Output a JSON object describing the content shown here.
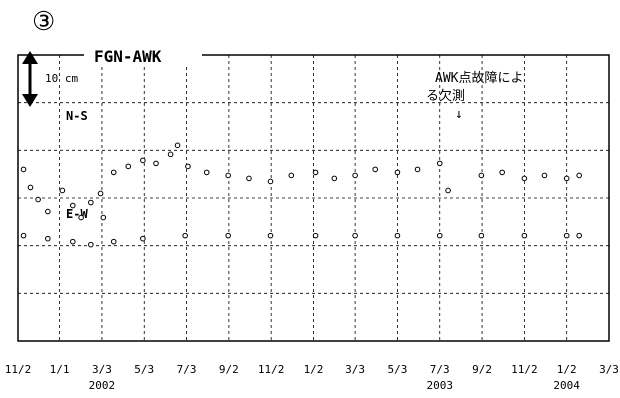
{
  "panel_marker": "③",
  "chart_data": {
    "type": "scatter",
    "title": "FGN-AWK",
    "scale_bar": {
      "label": "10 cm",
      "length_cm": 10
    },
    "grid": true,
    "grid_style": "dashed",
    "marker": "open-circle",
    "annotation": {
      "text_line1": "AWK点故障によ",
      "text_line2": "る欠測",
      "arrow": "↓",
      "at_x": "2003-07-25"
    },
    "x_ticks": [
      {
        "label": "11/2",
        "date": "2001-11-02"
      },
      {
        "label": "1/1",
        "date": "2002-01-01"
      },
      {
        "label": "3/3",
        "date": "2002-03-03"
      },
      {
        "label": "5/3",
        "date": "2002-05-03"
      },
      {
        "label": "7/3",
        "date": "2002-07-03"
      },
      {
        "label": "9/2",
        "date": "2002-09-02"
      },
      {
        "label": "11/2",
        "date": "2002-11-02"
      },
      {
        "label": "1/2",
        "date": "2003-01-02"
      },
      {
        "label": "3/3",
        "date": "2003-03-03"
      },
      {
        "label": "5/3",
        "date": "2003-05-03"
      },
      {
        "label": "7/3",
        "date": "2003-07-03"
      },
      {
        "label": "9/2",
        "date": "2003-09-02"
      },
      {
        "label": "11/2",
        "date": "2003-11-02"
      },
      {
        "label": "1/2",
        "date": "2004-01-02"
      },
      {
        "label": "3/3",
        "date": "2004-03-03"
      }
    ],
    "year_labels": [
      {
        "label": "2002",
        "date": "2002-03-03"
      },
      {
        "label": "2003",
        "date": "2003-07-03"
      },
      {
        "label": "2004",
        "date": "2004-01-02"
      }
    ],
    "xlim": [
      "2001-11-02",
      "2004-03-03"
    ],
    "ylim_cm": [
      -55,
      40
    ],
    "gap": [
      "2003-07-20",
      "2003-08-22"
    ],
    "series": [
      {
        "name": "N-S",
        "baseline_cm": 0,
        "values_cm": [
          {
            "x": "2001-11-10",
            "y": 2
          },
          {
            "x": "2001-11-20",
            "y": -4
          },
          {
            "x": "2001-12-01",
            "y": -8
          },
          {
            "x": "2001-12-15",
            "y": -12
          },
          {
            "x": "2002-01-05",
            "y": -5
          },
          {
            "x": "2002-01-20",
            "y": -10
          },
          {
            "x": "2002-02-01",
            "y": -14
          },
          {
            "x": "2002-02-15",
            "y": -9
          },
          {
            "x": "2002-03-01",
            "y": -6
          },
          {
            "x": "2002-03-20",
            "y": 1
          },
          {
            "x": "2002-04-10",
            "y": 3
          },
          {
            "x": "2002-05-01",
            "y": 5
          },
          {
            "x": "2002-05-20",
            "y": 4
          },
          {
            "x": "2002-06-10",
            "y": 7
          },
          {
            "x": "2002-06-20",
            "y": 10
          },
          {
            "x": "2002-07-05",
            "y": 3
          },
          {
            "x": "2002-08-01",
            "y": 1
          },
          {
            "x": "2002-09-01",
            "y": 0
          },
          {
            "x": "2002-10-01",
            "y": -1
          },
          {
            "x": "2002-11-01",
            "y": -2
          },
          {
            "x": "2002-12-01",
            "y": 0
          },
          {
            "x": "2003-01-05",
            "y": 1
          },
          {
            "x": "2003-02-01",
            "y": -1
          },
          {
            "x": "2003-03-03",
            "y": 0
          },
          {
            "x": "2003-04-01",
            "y": 2
          },
          {
            "x": "2003-05-03",
            "y": 1
          },
          {
            "x": "2003-06-01",
            "y": 2
          },
          {
            "x": "2003-07-03",
            "y": 4
          },
          {
            "x": "2003-07-15",
            "y": -5
          },
          {
            "x": "2003-09-01",
            "y": 0
          },
          {
            "x": "2003-10-01",
            "y": 1
          },
          {
            "x": "2003-11-02",
            "y": -1
          },
          {
            "x": "2003-12-01",
            "y": 0
          },
          {
            "x": "2004-01-02",
            "y": -1
          },
          {
            "x": "2004-01-20",
            "y": 0
          }
        ]
      },
      {
        "name": "E-W",
        "baseline_cm": -20,
        "values_cm": [
          {
            "x": "2001-11-10",
            "y": -20
          },
          {
            "x": "2001-12-15",
            "y": -21
          },
          {
            "x": "2002-01-20",
            "y": -22
          },
          {
            "x": "2002-02-15",
            "y": -23
          },
          {
            "x": "2002-03-05",
            "y": -14
          },
          {
            "x": "2002-03-20",
            "y": -22
          },
          {
            "x": "2002-05-01",
            "y": -21
          },
          {
            "x": "2002-07-01",
            "y": -20
          },
          {
            "x": "2002-09-01",
            "y": -20
          },
          {
            "x": "2002-11-01",
            "y": -20
          },
          {
            "x": "2003-01-05",
            "y": -20
          },
          {
            "x": "2003-03-03",
            "y": -20
          },
          {
            "x": "2003-05-03",
            "y": -20
          },
          {
            "x": "2003-07-03",
            "y": -20
          },
          {
            "x": "2003-09-01",
            "y": -20
          },
          {
            "x": "2003-11-02",
            "y": -20
          },
          {
            "x": "2004-01-02",
            "y": -20
          },
          {
            "x": "2004-01-20",
            "y": -20
          }
        ]
      }
    ],
    "series_labels": [
      "N-S",
      "E-W"
    ]
  }
}
